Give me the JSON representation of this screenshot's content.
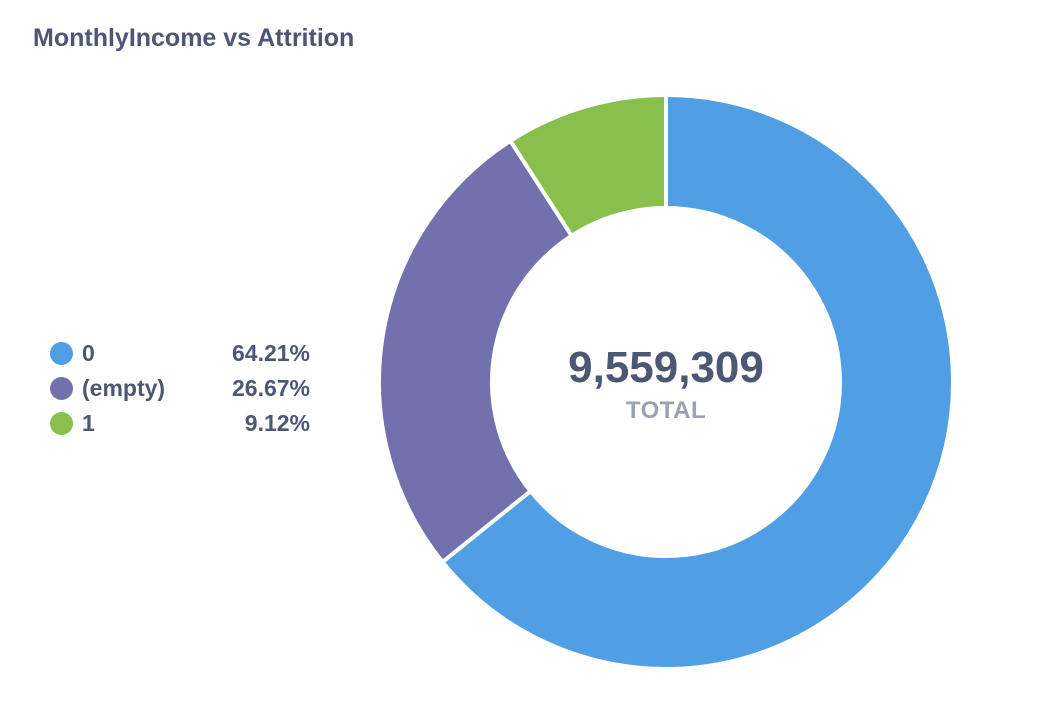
{
  "card": {
    "title": "MonthlyIncome vs Attrition"
  },
  "chart_data": {
    "type": "pie",
    "donut": true,
    "title": "MonthlyIncome vs Attrition",
    "total_value": "9,559,309",
    "total_label": "TOTAL",
    "legend_position": "left",
    "slices": [
      {
        "label": "0",
        "percent_text": "64.21%",
        "percent": 64.21,
        "color": "#509ee3"
      },
      {
        "label": "(empty)",
        "percent_text": "26.67%",
        "percent": 26.67,
        "color": "#7172ad"
      },
      {
        "label": "1",
        "percent_text": "9.12%",
        "percent": 9.12,
        "color": "#88bf4d"
      }
    ]
  }
}
